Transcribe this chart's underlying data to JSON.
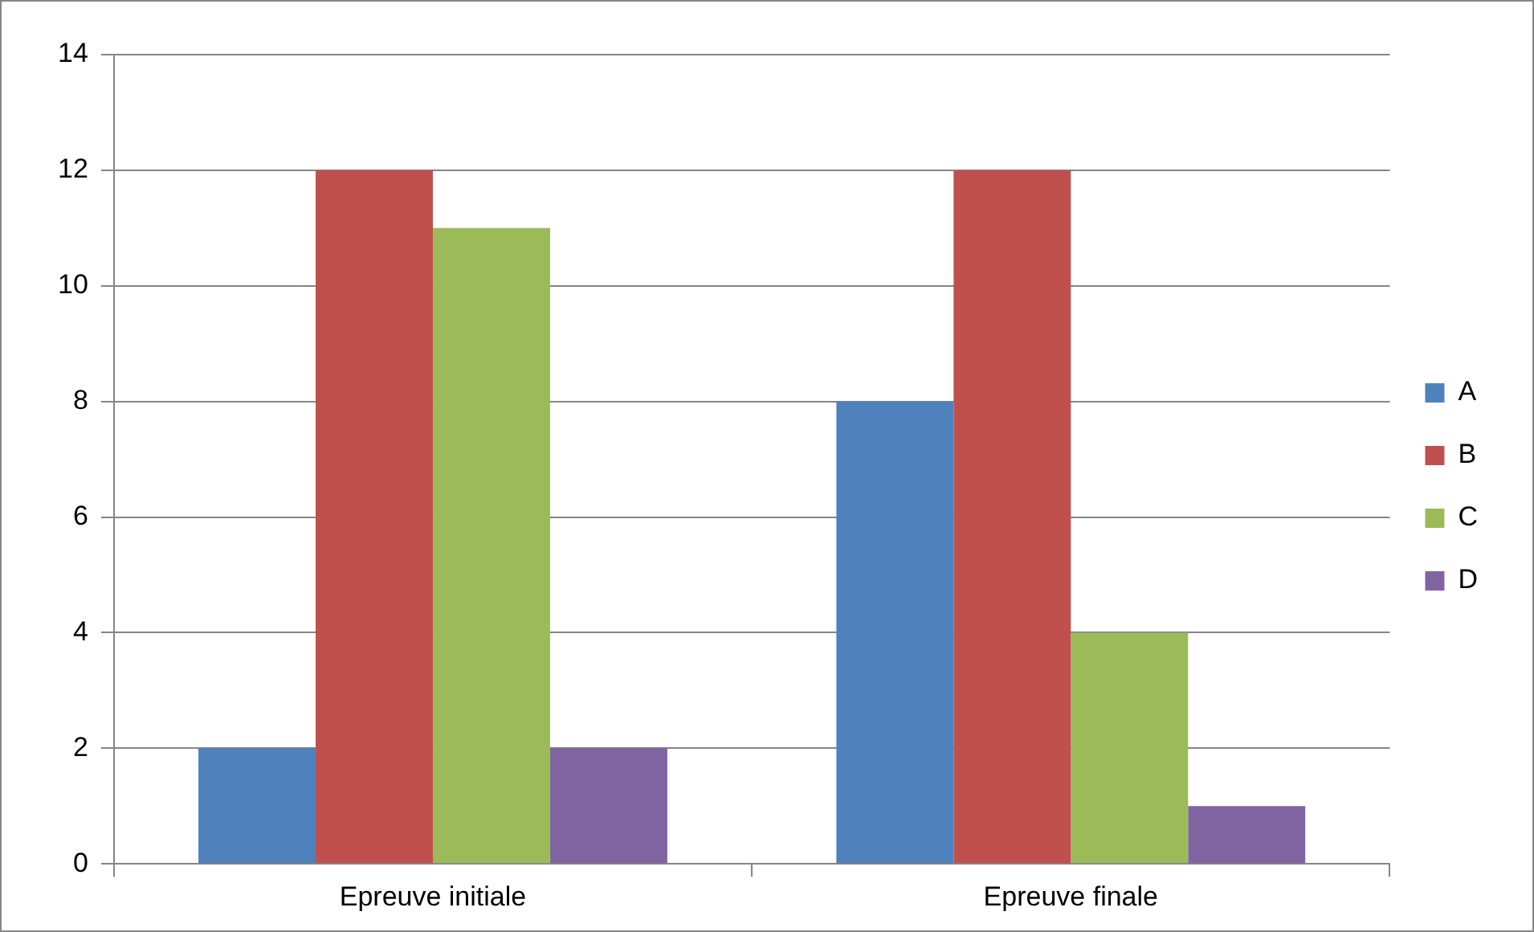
{
  "chart_data": {
    "type": "bar",
    "categories": [
      "Epreuve initiale",
      "Epreuve finale"
    ],
    "series": [
      {
        "name": "A",
        "color": "#4f81bd",
        "values": [
          2,
          8
        ]
      },
      {
        "name": "B",
        "color": "#c0504d",
        "values": [
          12,
          12
        ]
      },
      {
        "name": "C",
        "color": "#9bbb59",
        "values": [
          11,
          4
        ]
      },
      {
        "name": "D",
        "color": "#8064a2",
        "values": [
          2,
          1
        ]
      }
    ],
    "ylim": [
      0,
      14
    ],
    "yticks": [
      0,
      2,
      4,
      6,
      8,
      10,
      12,
      14
    ],
    "grid": "y",
    "legend": "right"
  }
}
